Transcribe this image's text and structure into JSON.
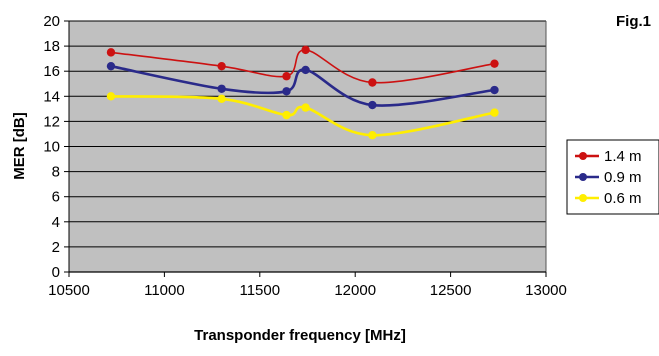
{
  "figure_label": "Fig.1",
  "chart_data": {
    "type": "line",
    "title": "",
    "xlabel": "Transponder frequency [MHz]",
    "ylabel": "MER [dB]",
    "xlim": [
      10500,
      13000
    ],
    "ylim": [
      0,
      20
    ],
    "xticks": [
      10500,
      11000,
      11500,
      12000,
      12500,
      13000
    ],
    "yticks": [
      0,
      2,
      4,
      6,
      8,
      10,
      12,
      14,
      16,
      18,
      20
    ],
    "grid": "horizontal",
    "legend_position": "right",
    "plot_background": "#c0c0c0",
    "series": [
      {
        "name": "1.4 m",
        "color": "#cc1111",
        "x": [
          10720,
          11300,
          11640,
          11740,
          12090,
          12730
        ],
        "y": [
          17.5,
          16.4,
          15.6,
          17.7,
          15.1,
          16.6
        ]
      },
      {
        "name": "0.9 m",
        "color": "#2a2a8a",
        "x": [
          10720,
          11300,
          11640,
          11740,
          12090,
          12730
        ],
        "y": [
          16.4,
          14.6,
          14.4,
          16.1,
          13.3,
          14.5
        ]
      },
      {
        "name": "0.6 m",
        "color": "#ffee00",
        "x": [
          10720,
          11300,
          11640,
          11740,
          12090,
          12730
        ],
        "y": [
          14.0,
          13.8,
          12.5,
          13.1,
          10.9,
          12.7
        ]
      }
    ]
  }
}
